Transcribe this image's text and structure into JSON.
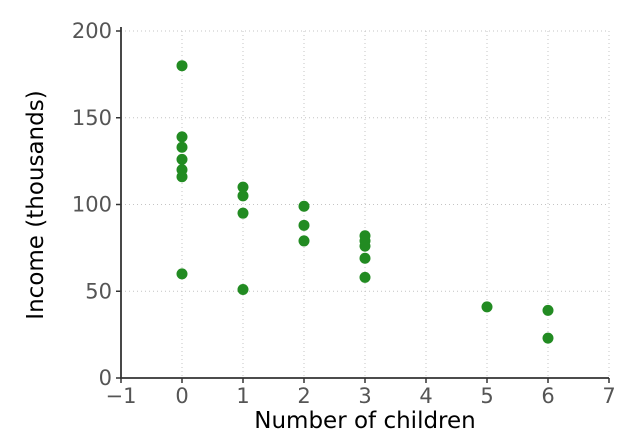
{
  "chart_data": {
    "type": "scatter",
    "title": "",
    "xlabel": "Number of children",
    "ylabel": "Income (thousands)",
    "xlim": [
      -1,
      7
    ],
    "ylim": [
      0,
      200
    ],
    "xticks": [
      -1,
      0,
      1,
      2,
      3,
      4,
      5,
      6,
      7
    ],
    "xtick_labels": [
      "−1",
      "0",
      "1",
      "2",
      "3",
      "4",
      "5",
      "6",
      "7"
    ],
    "yticks": [
      0,
      50,
      100,
      150,
      200
    ],
    "ytick_labels": [
      "0",
      "50",
      "100",
      "150",
      "200"
    ],
    "grid": "dotted",
    "legend_position": "none",
    "marker": "circle",
    "marker_color": "#228b22",
    "marker_radius_px": 5.5,
    "points": [
      [
        0,
        180
      ],
      [
        0,
        139
      ],
      [
        0,
        133
      ],
      [
        0,
        126
      ],
      [
        0,
        120
      ],
      [
        0,
        116
      ],
      [
        0,
        60
      ],
      [
        1,
        110
      ],
      [
        1,
        105
      ],
      [
        1,
        95
      ],
      [
        1,
        51
      ],
      [
        2,
        99
      ],
      [
        2,
        88
      ],
      [
        2,
        79
      ],
      [
        3,
        82
      ],
      [
        3,
        79
      ],
      [
        3,
        76
      ],
      [
        3,
        69
      ],
      [
        3,
        58
      ],
      [
        5,
        41
      ],
      [
        6,
        39
      ],
      [
        6,
        23
      ]
    ]
  },
  "colors": {
    "background": "#ffffff",
    "spine": "#333333",
    "tick_label": "#555555",
    "grid": "#c4c4c4",
    "axis_title": "#000000",
    "marker": "#228b22"
  }
}
